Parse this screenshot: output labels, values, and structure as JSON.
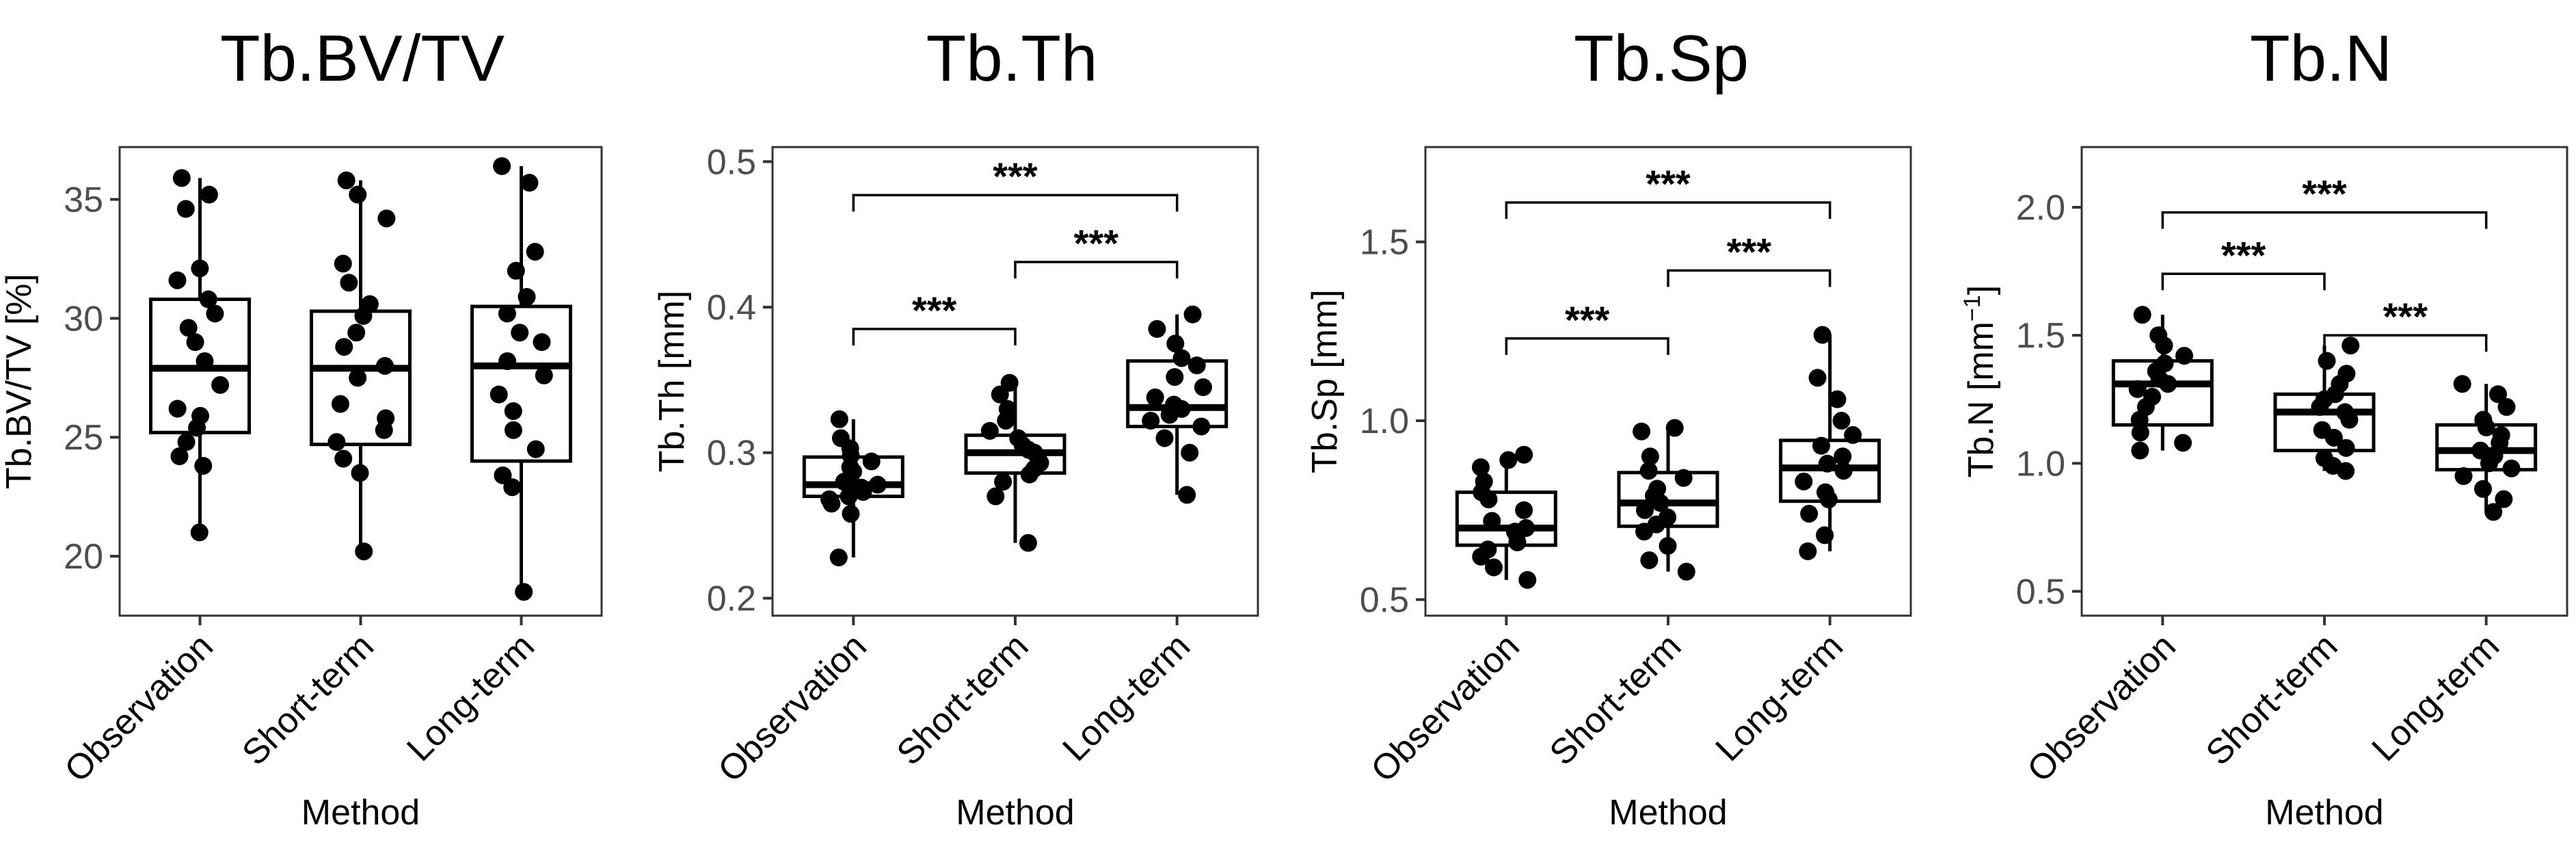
{
  "chart_data": [
    {
      "type": "box",
      "title": "Tb.BV/TV",
      "xlabel": "Method",
      "ylabel": "Tb.BV/TV [%]",
      "ylim": [
        17.5,
        37.2
      ],
      "yticks": [
        20,
        25,
        30,
        35
      ],
      "categories": [
        "Observation",
        "Short-term",
        "Long-term"
      ],
      "boxes": [
        {
          "min": 21.0,
          "q1": 25.2,
          "median": 27.9,
          "q3": 30.8,
          "max": 35.9
        },
        {
          "min": 20.2,
          "q1": 24.7,
          "median": 27.9,
          "q3": 30.3,
          "max": 35.8
        },
        {
          "min": 18.5,
          "q1": 24.0,
          "median": 28.0,
          "q3": 30.5,
          "max": 36.4
        }
      ],
      "points": [
        [
          21.0,
          23.8,
          24.2,
          24.8,
          25.4,
          25.9,
          26.2,
          27.2,
          28.2,
          29.0,
          29.6,
          30.2,
          30.8,
          31.6,
          32.1,
          34.6,
          35.2,
          35.9
        ],
        [
          20.2,
          23.5,
          24.1,
          24.8,
          25.3,
          25.8,
          26.4,
          27.5,
          28.0,
          28.8,
          29.4,
          30.1,
          30.6,
          31.5,
          32.3,
          34.2,
          35.2,
          35.8
        ],
        [
          18.5,
          22.9,
          23.4,
          24.5,
          25.3,
          26.1,
          26.8,
          27.6,
          28.2,
          29.0,
          29.4,
          30.2,
          30.9,
          32.0,
          32.8,
          35.7,
          36.4
        ]
      ],
      "significance": []
    },
    {
      "type": "box",
      "title": "Tb.Th",
      "xlabel": "Method",
      "ylabel": "Tb.Th [mm]",
      "ylim": [
        0.188,
        0.51
      ],
      "yticks": [
        0.2,
        0.3,
        0.4,
        0.5
      ],
      "ytick_labels": [
        "0.2",
        "0.3",
        "0.4",
        "0.5"
      ],
      "categories": [
        "Observation",
        "Short-term",
        "Long-term"
      ],
      "boxes": [
        {
          "min": 0.228,
          "q1": 0.27,
          "median": 0.278,
          "q3": 0.297,
          "max": 0.323
        },
        {
          "min": 0.238,
          "q1": 0.286,
          "median": 0.3,
          "q3": 0.312,
          "max": 0.348
        },
        {
          "min": 0.271,
          "q1": 0.318,
          "median": 0.331,
          "q3": 0.363,
          "max": 0.395
        }
      ],
      "points": [
        [
          0.228,
          0.258,
          0.265,
          0.268,
          0.27,
          0.273,
          0.276,
          0.278,
          0.28,
          0.283,
          0.287,
          0.29,
          0.294,
          0.298,
          0.303,
          0.31,
          0.323
        ],
        [
          0.238,
          0.27,
          0.28,
          0.285,
          0.289,
          0.293,
          0.297,
          0.3,
          0.302,
          0.305,
          0.31,
          0.315,
          0.322,
          0.33,
          0.34,
          0.348
        ],
        [
          0.271,
          0.3,
          0.31,
          0.318,
          0.322,
          0.326,
          0.33,
          0.333,
          0.338,
          0.345,
          0.352,
          0.36,
          0.365,
          0.375,
          0.385,
          0.395
        ]
      ],
      "significance": [
        {
          "from": 0,
          "to": 1,
          "label": "***",
          "y": 0.385
        },
        {
          "from": 1,
          "to": 2,
          "label": "***",
          "y": 0.431
        },
        {
          "from": 0,
          "to": 2,
          "label": "***",
          "y": 0.477
        }
      ]
    },
    {
      "type": "box",
      "title": "Tb.Sp",
      "xlabel": "Method",
      "ylabel": "Tb.Sp [mm]",
      "ylim": [
        0.455,
        1.765
      ],
      "yticks": [
        0.5,
        1.0,
        1.5
      ],
      "ytick_labels": [
        "0.5",
        "1.0",
        "1.5"
      ],
      "categories": [
        "Observation",
        "Short-term",
        "Long-term"
      ],
      "boxes": [
        {
          "min": 0.555,
          "q1": 0.652,
          "median": 0.7,
          "q3": 0.8,
          "max": 0.905
        },
        {
          "min": 0.578,
          "q1": 0.705,
          "median": 0.77,
          "q3": 0.855,
          "max": 0.98
        },
        {
          "min": 0.635,
          "q1": 0.775,
          "median": 0.868,
          "q3": 0.945,
          "max": 1.24
        }
      ],
      "points": [
        [
          0.555,
          0.59,
          0.62,
          0.64,
          0.66,
          0.68,
          0.69,
          0.7,
          0.72,
          0.75,
          0.78,
          0.8,
          0.83,
          0.87,
          0.89,
          0.905
        ],
        [
          0.578,
          0.61,
          0.65,
          0.69,
          0.71,
          0.73,
          0.75,
          0.77,
          0.79,
          0.81,
          0.84,
          0.86,
          0.9,
          0.97,
          0.98
        ],
        [
          0.635,
          0.68,
          0.74,
          0.78,
          0.8,
          0.83,
          0.86,
          0.88,
          0.9,
          0.93,
          0.96,
          1.0,
          1.06,
          1.12,
          1.24
        ]
      ],
      "significance": [
        {
          "from": 0,
          "to": 1,
          "label": "***",
          "y": 1.23
        },
        {
          "from": 1,
          "to": 2,
          "label": "***",
          "y": 1.42
        },
        {
          "from": 0,
          "to": 2,
          "label": "***",
          "y": 1.61
        }
      ]
    },
    {
      "type": "box",
      "title": "Tb.N",
      "xlabel": "Method",
      "ylabel": "Tb.N [mm",
      "ylabel_superscript": "−1",
      "ylabel_suffix": "]",
      "ylim": [
        0.405,
        2.235
      ],
      "yticks": [
        0.5,
        1.0,
        1.5,
        2.0
      ],
      "ytick_labels": [
        "0.5",
        "1.0",
        "1.5",
        "2.0"
      ],
      "categories": [
        "Observation",
        "Short-term",
        "Long-term"
      ],
      "boxes": [
        {
          "min": 1.05,
          "q1": 1.15,
          "median": 1.31,
          "q3": 1.4,
          "max": 1.58
        },
        {
          "min": 0.97,
          "q1": 1.05,
          "median": 1.2,
          "q3": 1.27,
          "max": 1.46
        },
        {
          "min": 0.81,
          "q1": 0.975,
          "median": 1.05,
          "q3": 1.15,
          "max": 1.31
        }
      ],
      "points": [
        [
          1.05,
          1.08,
          1.12,
          1.17,
          1.22,
          1.26,
          1.29,
          1.31,
          1.33,
          1.36,
          1.39,
          1.42,
          1.46,
          1.5,
          1.58
        ],
        [
          0.97,
          0.99,
          1.02,
          1.06,
          1.1,
          1.13,
          1.17,
          1.2,
          1.22,
          1.25,
          1.27,
          1.31,
          1.35,
          1.4,
          1.46
        ],
        [
          0.81,
          0.86,
          0.9,
          0.95,
          0.98,
          1.0,
          1.03,
          1.05,
          1.08,
          1.11,
          1.14,
          1.17,
          1.22,
          1.27,
          1.31
        ]
      ],
      "significance": [
        {
          "from": 0,
          "to": 1,
          "label": "***",
          "y": 1.74
        },
        {
          "from": 1,
          "to": 2,
          "label": "***",
          "y": 1.5
        },
        {
          "from": 0,
          "to": 2,
          "label": "***",
          "y": 1.98
        }
      ]
    }
  ]
}
